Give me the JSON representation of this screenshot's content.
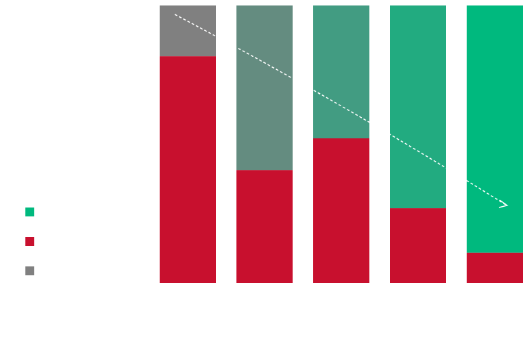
{
  "chart_data": {
    "type": "bar",
    "stacked": true,
    "categories": [
      null,
      null,
      null,
      null,
      null
    ],
    "series": [
      {
        "color": "#c8102e",
        "values": [
          81.7,
          40.7,
          52.1,
          26.9,
          10.9
        ]
      },
      {
        "colors": [
          "#808080",
          "#648c80",
          "#429c82",
          "#22ab80",
          "#00b97e"
        ],
        "values": [
          18.3,
          59.3,
          47.9,
          73.1,
          89.1
        ]
      }
    ],
    "ylim": [
      0,
      100
    ],
    "tick_labels": false,
    "grid": false,
    "legend": "left"
  }
}
